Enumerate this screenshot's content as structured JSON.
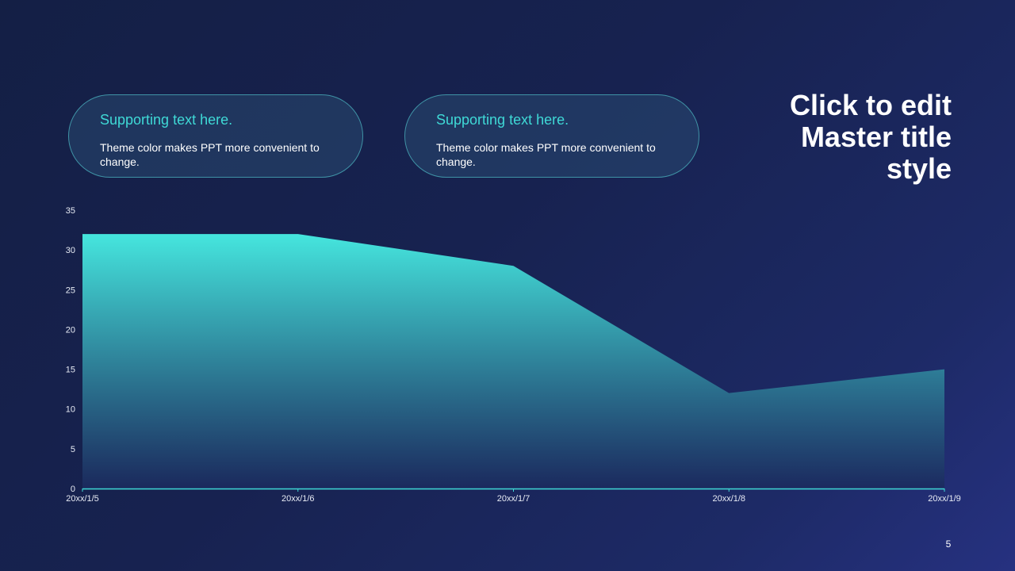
{
  "slide": {
    "title": "Click to edit Master title style",
    "page_number": "5"
  },
  "cards": [
    {
      "heading": "Supporting text here.",
      "body": "Theme color makes PPT more convenient to change."
    },
    {
      "heading": "Supporting text here.",
      "body": "Theme color makes PPT more convenient to change."
    }
  ],
  "colors": {
    "accent": "#3fd9d6",
    "area_top": "#45e6de",
    "area_bottom": "#1b2a5e",
    "axis_line": "#3fd9d6",
    "card_border": "#3f93a6"
  },
  "chart_data": {
    "type": "area",
    "x": [
      "20xx/1/5",
      "20xx/1/6",
      "20xx/1/7",
      "20xx/1/8",
      "20xx/1/9"
    ],
    "series": [
      {
        "values": [
          32,
          32,
          28,
          12,
          15
        ]
      }
    ],
    "ylim": [
      0,
      35
    ],
    "yticks": [
      0,
      5,
      10,
      15,
      20,
      25,
      30,
      35
    ],
    "grid": false,
    "legend": "none"
  }
}
